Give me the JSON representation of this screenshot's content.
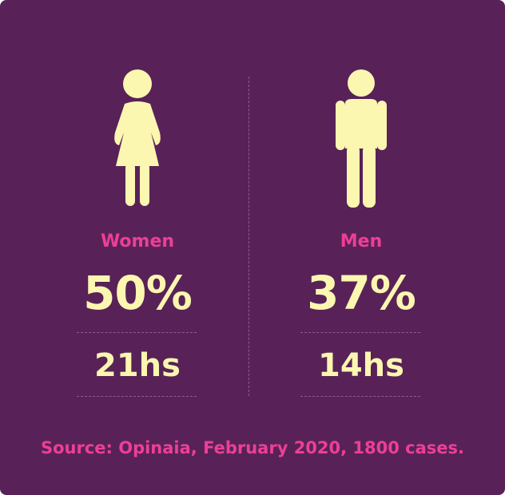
{
  "colors": {
    "background": "#582258",
    "accent": "#ed3f95",
    "figure": "#fbf6b0",
    "divider": "#8c5d8f"
  },
  "women": {
    "icon": "woman-icon",
    "label": "Women",
    "percent": "50%",
    "hours": "21hs"
  },
  "men": {
    "icon": "man-icon",
    "label": "Men",
    "percent": "37%",
    "hours": "14hs"
  },
  "source": "Source: Opinaia, February 2020, 1800 cases."
}
